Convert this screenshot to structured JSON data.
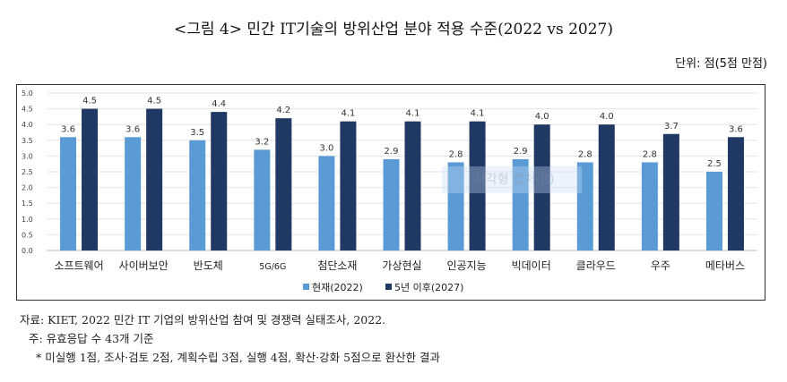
{
  "title": "<그림 4> 민간 IT기술의 방위산업 분야 적용 수준(2022 vs 2027)",
  "unit": "단위: 점(5점 만점)",
  "chart_data": {
    "type": "bar",
    "categories": [
      "소프트웨어",
      "사이버보안",
      "반도체",
      "5G/6G",
      "첨단소재",
      "가상현실",
      "인공지능",
      "빅데이터",
      "클라우드",
      "우주",
      "메타버스"
    ],
    "series": [
      {
        "name": "현재(2022)",
        "color": "#5b9bd5",
        "values": [
          3.6,
          3.6,
          3.5,
          3.2,
          3.0,
          2.9,
          2.8,
          2.9,
          2.8,
          2.8,
          2.5
        ]
      },
      {
        "name": "5년 이후(2027)",
        "color": "#1f3864",
        "values": [
          4.5,
          4.5,
          4.4,
          4.2,
          4.1,
          4.1,
          4.1,
          4.0,
          4.0,
          3.7,
          3.6
        ]
      }
    ],
    "ylim": [
      0,
      5.0
    ],
    "yticks": [
      "0.0",
      "0.5",
      "1.0",
      "1.5",
      "2.0",
      "2.5",
      "3.0",
      "3.5",
      "4.0",
      "4.5",
      "5.0"
    ],
    "grid": true,
    "legend": "bottom"
  },
  "overlay_text": "사각형 캡처(R)",
  "notes": {
    "source": "자료: KIET, 2022 민간 IT 기업의 방위산업 참여 및 경쟁력 실태조사, 2022.",
    "note": "주: 유효응답 수 43개 기준",
    "footnote": "* 미실행 1점, 조사·검토 2점, 계획수립 3점, 실행 4점, 확산·강화 5점으로 환산한 결과"
  }
}
